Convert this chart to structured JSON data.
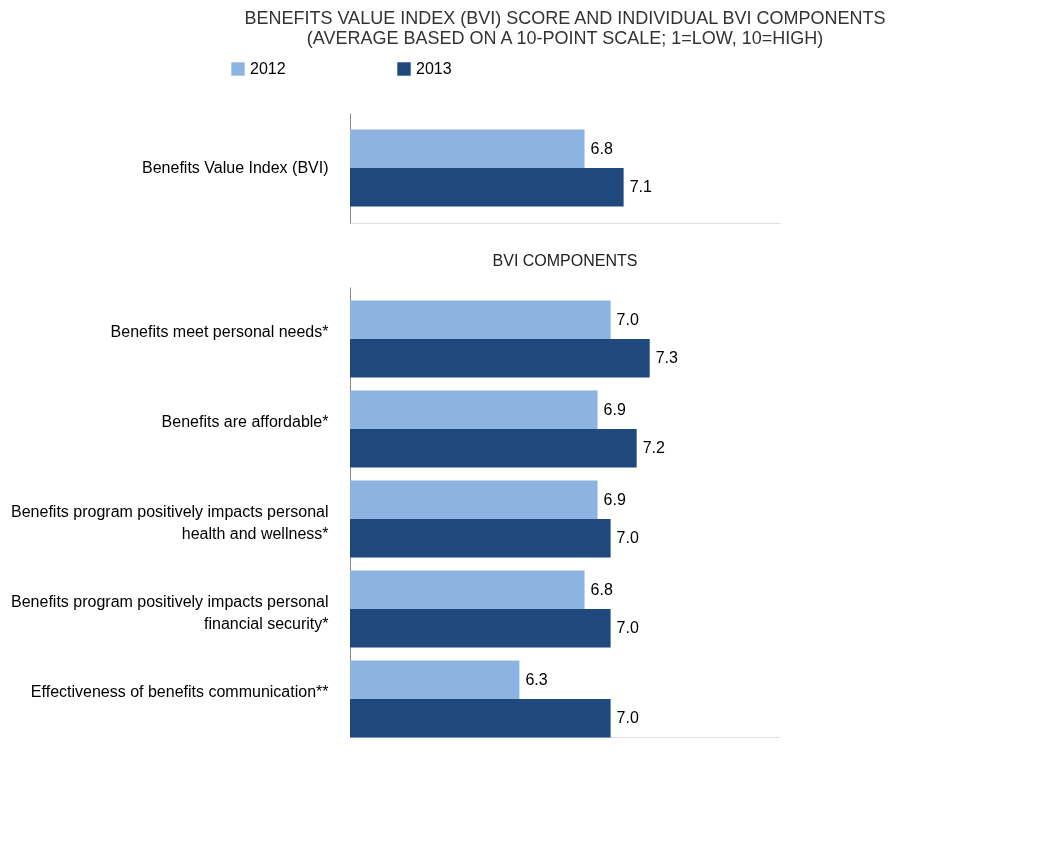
{
  "chart_data": [
    {
      "type": "bar",
      "orientation": "horizontal",
      "title": "BENEFITS VALUE INDEX (BVI) SCORE AND INDIVIDUAL BVI COMPONENTS\n(AVERAGE BASED ON A 10-POINT SCALE; 1=LOW, 10=HIGH)",
      "categories": [
        "Benefits Value Index (BVI)"
      ],
      "series": [
        {
          "name": "2012",
          "color": "#8db3e2",
          "values": [
            6.8
          ],
          "value_labels": [
            "6.8"
          ]
        },
        {
          "name": "2013",
          "color": "#1f497d",
          "values": [
            7.1
          ],
          "value_labels": [
            "7.1"
          ]
        }
      ],
      "xlim": [
        5,
        8.3
      ],
      "legend": "top",
      "tick_labels": "y"
    },
    {
      "type": "bar",
      "orientation": "horizontal",
      "title": "BVI COMPONENTS",
      "categories": [
        "Benefits meet personal needs*",
        "Benefits are affordable*",
        "Benefits program positively impacts personal health and wellness*",
        "Benefits program positively impacts personal financial security*",
        "Effectiveness of benefits communication**"
      ],
      "series": [
        {
          "color": "#8db3e2",
          "values": [
            7.0,
            6.9,
            6.9,
            6.8,
            6.3
          ],
          "value_labels": [
            "7.0",
            "6.9",
            "6.9",
            "6.8",
            "6.3"
          ]
        },
        {
          "color": "#1f497d",
          "values": [
            7.3,
            7.2,
            7.0,
            7.0,
            7.0
          ],
          "value_labels": [
            "7.3",
            "7.2",
            "7.0",
            "7.0",
            "7.0"
          ]
        }
      ],
      "xlim": [
        5,
        8.3
      ],
      "legend": false,
      "tick_labels": "y"
    }
  ]
}
